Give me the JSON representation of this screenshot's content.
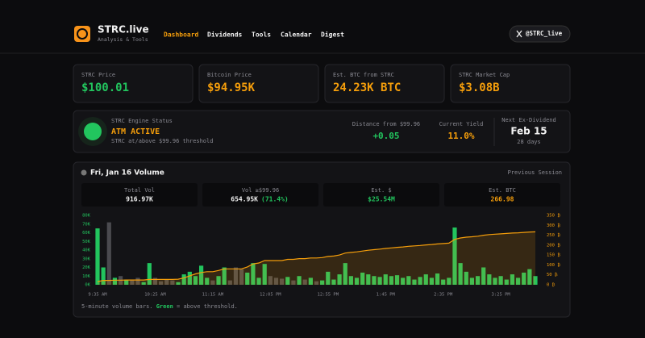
{
  "header": {
    "brand": "STRC.live",
    "tagline": "Analysis & Tools",
    "nav": [
      "Dashboard",
      "Dividends",
      "Tools",
      "Calendar",
      "Digest"
    ],
    "social": "@STRC_live"
  },
  "cards": [
    {
      "label": "STRC Price",
      "value": "$100.01"
    },
    {
      "label": "Bitcoin Price",
      "value": "$94.95K"
    },
    {
      "label": "Est. BTC from STRC",
      "value": "24.23K BTC"
    },
    {
      "label": "STRC Market Cap",
      "value": "$3.08B"
    }
  ],
  "status": {
    "title": "STRC Engine Status",
    "state": "ATM ACTIVE",
    "note": "STRC at/above $99.96 threshold",
    "metrics": [
      {
        "label": "Distance from $99.96",
        "value": "+0.05"
      },
      {
        "label": "Current Yield",
        "value": "11.0%"
      }
    ],
    "next_ex_dividend": {
      "label": "Next Ex-Dividend",
      "date": "Feb 15",
      "days": "28 days"
    }
  },
  "volume": {
    "title": "Fri, Jan 16 Volume",
    "session": "Previous Session",
    "stats": [
      {
        "label": "Total Vol",
        "value": "916.97K"
      },
      {
        "label": "Vol ≥$99.96",
        "value": "654.95K",
        "extra": "(71.4%)"
      },
      {
        "label": "Est. $",
        "value": "$25.54M"
      },
      {
        "label": "Est. BTC",
        "value": "266.98"
      }
    ],
    "footnote": [
      "5-minute volume bars. ",
      "Green",
      " = above threshold."
    ]
  },
  "chart_data": {
    "type": "bar",
    "categories": [
      "9:35 AM",
      null,
      null,
      null,
      null,
      null,
      null,
      null,
      null,
      null,
      "10:25 AM",
      null,
      null,
      null,
      null,
      null,
      null,
      null,
      null,
      null,
      "11:15 AM",
      null,
      null,
      null,
      null,
      null,
      null,
      null,
      null,
      null,
      "12:05 PM",
      null,
      null,
      null,
      null,
      null,
      null,
      null,
      null,
      null,
      "12:55 PM",
      null,
      null,
      null,
      null,
      null,
      null,
      null,
      null,
      null,
      "1:45 PM",
      null,
      null,
      null,
      null,
      null,
      null,
      null,
      null,
      null,
      "2:35 PM",
      null,
      null,
      null,
      null,
      null,
      null,
      null,
      null,
      null,
      "3:25 PM",
      null,
      null,
      null,
      null,
      null,
      null
    ],
    "values": [
      65000,
      20000,
      72000,
      8000,
      10000,
      6000,
      5000,
      8000,
      3000,
      25000,
      8000,
      4000,
      6000,
      5000,
      3000,
      12000,
      15000,
      10000,
      22000,
      8000,
      5000,
      10000,
      20000,
      5000,
      20000,
      18000,
      14000,
      25000,
      8000,
      24000,
      10000,
      8000,
      7000,
      9000,
      5000,
      10000,
      6000,
      8000,
      4000,
      5000,
      15000,
      6000,
      12000,
      25000,
      10000,
      8000,
      14000,
      12000,
      10000,
      9000,
      12000,
      10000,
      11000,
      8000,
      10000,
      6000,
      9000,
      12000,
      8000,
      13000,
      6000,
      8000,
      66000,
      25000,
      15000,
      8000,
      10000,
      20000,
      12000,
      8000,
      10000,
      6000,
      12000,
      8000,
      14000,
      18000,
      10000
    ],
    "above_threshold": [
      true,
      true,
      false,
      true,
      false,
      true,
      false,
      false,
      true,
      true,
      false,
      false,
      false,
      false,
      true,
      true,
      true,
      true,
      true,
      true,
      false,
      true,
      true,
      false,
      false,
      false,
      true,
      true,
      true,
      true,
      false,
      false,
      false,
      true,
      false,
      true,
      false,
      true,
      false,
      true,
      true,
      true,
      true,
      true,
      true,
      true,
      true,
      true,
      true,
      true,
      true,
      true,
      true,
      true,
      true,
      true,
      true,
      true,
      true,
      true,
      true,
      true,
      true,
      true,
      true,
      true,
      true,
      true,
      true,
      true,
      true,
      true,
      true,
      true,
      true,
      true,
      true
    ],
    "color_above": "#22c55e",
    "color_below": "#4a4a4f",
    "ylim": [
      0,
      80000
    ],
    "yticks": [
      {
        "value": 0,
        "label": "0K"
      },
      {
        "value": 10000,
        "label": "10K"
      },
      {
        "value": 20000,
        "label": "20K"
      },
      {
        "value": 30000,
        "label": "30K"
      },
      {
        "value": 40000,
        "label": "40K"
      },
      {
        "value": 50000,
        "label": "50K"
      },
      {
        "value": 60000,
        "label": "60K"
      },
      {
        "value": 70000,
        "label": "70K"
      },
      {
        "value": 80000,
        "label": "80K"
      }
    ],
    "y2lim": [
      0,
      350
    ],
    "y2ticks": [
      {
        "value": 0,
        "label": "0 ₿"
      },
      {
        "value": 50,
        "label": "50 ₿"
      },
      {
        "value": 100,
        "label": "100 ₿"
      },
      {
        "value": 150,
        "label": "150 ₿"
      },
      {
        "value": 200,
        "label": "200 ₿"
      },
      {
        "value": 250,
        "label": "250 ₿"
      },
      {
        "value": 300,
        "label": "300 ₿"
      },
      {
        "value": 350,
        "label": "350 ₿"
      }
    ],
    "line": {
      "axis": "y2",
      "color": "#f59e0b",
      "values": [
        16,
        22,
        22,
        23,
        23,
        24,
        24,
        24,
        24,
        27,
        27,
        27,
        27,
        27,
        28,
        35,
        45,
        55,
        62,
        66,
        66,
        72,
        80,
        80,
        80,
        80,
        90,
        105,
        110,
        122,
        122,
        122,
        122,
        128,
        128,
        132,
        132,
        135,
        135,
        137,
        143,
        145,
        150,
        160,
        163,
        166,
        170,
        174,
        177,
        180,
        183,
        186,
        189,
        191,
        194,
        196,
        198,
        201,
        203,
        206,
        208,
        210,
        229,
        236,
        240,
        242,
        245,
        250,
        253,
        255,
        257,
        259,
        261,
        262,
        264,
        266,
        266.98
      ]
    }
  }
}
